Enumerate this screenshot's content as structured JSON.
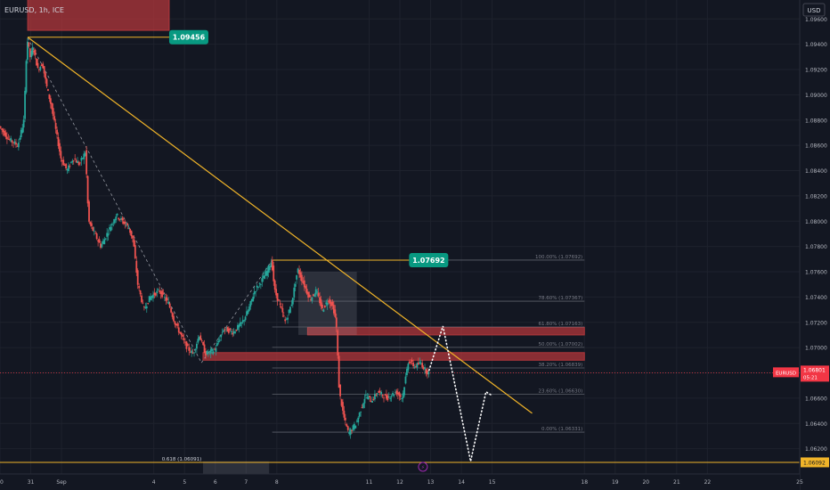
{
  "header": {
    "symbol_label": "EURUSD, 1h, ICE"
  },
  "currency_button": {
    "label": "USD"
  },
  "colors": {
    "background": "#131722",
    "grid": "#1e222d",
    "up": "#26a69a",
    "down": "#ef5350",
    "trendline": "#f0b429",
    "zone": "#b2373b",
    "label_green": "#089981",
    "price_tag_red": "#f23645",
    "box_gray": "#b2b5be"
  },
  "chart_data": {
    "type": "candlestick",
    "title": "",
    "symbol": "EURUSD",
    "timeframe": "1h",
    "exchange": "ICE",
    "y_axis": {
      "min": 1.06,
      "max": 1.0975,
      "ticks": [
        1.096,
        1.094,
        1.092,
        1.09,
        1.088,
        1.086,
        1.084,
        1.082,
        1.08,
        1.078,
        1.076,
        1.074,
        1.072,
        1.07,
        1.068,
        1.066,
        1.064,
        1.062,
        1.06
      ],
      "tick_labels": [
        "1.09600",
        "1.09400",
        "1.09200",
        "1.09000",
        "1.08800",
        "1.08600",
        "1.08400",
        "1.08200",
        "1.08000",
        "1.07800",
        "1.07600",
        "1.07400",
        "1.07200",
        "1.07000",
        "1.06800",
        "1.06600",
        "1.06400",
        "1.06200",
        "1.06000"
      ]
    },
    "x_axis": {
      "min": 30.0,
      "max": 56.0,
      "ticks": [
        30,
        31,
        32,
        35,
        36,
        37,
        38,
        39,
        42,
        43,
        44,
        45,
        46,
        49,
        50,
        51,
        52,
        53,
        56
      ],
      "tick_labels": [
        "30",
        "31",
        "Sep",
        "4",
        "5",
        "6",
        "7",
        "8",
        "11",
        "12",
        "13",
        "14",
        "15",
        "18",
        "19",
        "20",
        "21",
        "22",
        "25"
      ]
    },
    "price_path": [
      [
        30.0,
        1.0875
      ],
      [
        30.3,
        1.0865
      ],
      [
        30.6,
        1.086
      ],
      [
        30.8,
        1.088
      ],
      [
        30.9,
        1.0945
      ],
      [
        31.0,
        1.093
      ],
      [
        31.1,
        1.0938
      ],
      [
        31.25,
        1.092
      ],
      [
        31.4,
        1.0925
      ],
      [
        31.55,
        1.0905
      ],
      [
        31.7,
        1.089
      ],
      [
        31.85,
        1.087
      ],
      [
        32.0,
        1.085
      ],
      [
        32.2,
        1.084
      ],
      [
        32.4,
        1.085
      ],
      [
        32.6,
        1.0845
      ],
      [
        32.8,
        1.0855
      ],
      [
        32.9,
        1.08
      ],
      [
        33.1,
        1.079
      ],
      [
        33.3,
        1.078
      ],
      [
        33.5,
        1.079
      ],
      [
        33.8,
        1.0805
      ],
      [
        34.0,
        1.08
      ],
      [
        34.2,
        1.0795
      ],
      [
        34.35,
        1.0785
      ],
      [
        34.5,
        1.075
      ],
      [
        34.7,
        1.073
      ],
      [
        34.9,
        1.074
      ],
      [
        35.2,
        1.0745
      ],
      [
        35.5,
        1.0735
      ],
      [
        35.7,
        1.072
      ],
      [
        35.9,
        1.071
      ],
      [
        36.1,
        1.07
      ],
      [
        36.3,
        1.0695
      ],
      [
        36.5,
        1.071
      ],
      [
        36.7,
        1.0695
      ],
      [
        37.0,
        1.0698
      ],
      [
        37.3,
        1.0715
      ],
      [
        37.6,
        1.0712
      ],
      [
        37.9,
        1.072
      ],
      [
        38.1,
        1.073
      ],
      [
        38.3,
        1.0745
      ],
      [
        38.5,
        1.0752
      ],
      [
        38.7,
        1.076
      ],
      [
        38.85,
        1.0769
      ],
      [
        38.95,
        1.0745
      ],
      [
        39.1,
        1.0735
      ],
      [
        39.3,
        1.072
      ],
      [
        39.5,
        1.0735
      ],
      [
        39.7,
        1.0762
      ],
      [
        39.9,
        1.075
      ],
      [
        40.1,
        1.0738
      ],
      [
        40.3,
        1.0745
      ],
      [
        40.5,
        1.073
      ],
      [
        40.7,
        1.0738
      ],
      [
        40.85,
        1.0732
      ],
      [
        40.95,
        1.072
      ],
      [
        41.05,
        1.0665
      ],
      [
        41.2,
        1.0645
      ],
      [
        41.35,
        1.0632
      ],
      [
        41.6,
        1.064
      ],
      [
        41.9,
        1.0662
      ],
      [
        42.1,
        1.0658
      ],
      [
        42.3,
        1.0665
      ],
      [
        42.6,
        1.066
      ],
      [
        42.9,
        1.0665
      ],
      [
        43.1,
        1.066
      ],
      [
        43.3,
        1.069
      ],
      [
        43.5,
        1.0685
      ],
      [
        43.7,
        1.0688
      ],
      [
        43.85,
        1.0682
      ],
      [
        43.95,
        1.068
      ]
    ],
    "projection_path": [
      [
        43.95,
        1.0682
      ],
      [
        44.4,
        1.0717
      ],
      [
        45.3,
        1.061
      ],
      [
        45.8,
        1.0665
      ],
      [
        46.0,
        1.0662
      ]
    ],
    "price_labels": [
      {
        "label": "1.09456",
        "value": 1.09456
      },
      {
        "label": "1.07692",
        "value": 1.07692
      }
    ],
    "current_price": {
      "label": "EURUSD",
      "price_text": "1.06801",
      "countdown": "05:21",
      "value": 1.06801
    },
    "level_tag": {
      "label": "1.06092",
      "value": 1.06092
    },
    "fib_line_label": {
      "label": "0.618 (1.06091)",
      "value": 1.06091
    },
    "fib_levels": [
      {
        "label": "100.00% (1.07692)",
        "value": 1.07692
      },
      {
        "label": "78.60% (1.07367)",
        "value": 1.07367
      },
      {
        "label": "61.80% (1.07163)",
        "value": 1.07163
      },
      {
        "label": "50.00% (1.07002)",
        "value": 1.07002
      },
      {
        "label": "38.20% (1.06839)",
        "value": 1.06839
      },
      {
        "label": "23.60% (1.06630)",
        "value": 1.0663
      },
      {
        "label": "0.00% (1.06331)",
        "value": 1.06331
      }
    ],
    "trendline": [
      [
        30.9,
        1.09456
      ],
      [
        47.3,
        1.0648
      ]
    ],
    "zones": [
      {
        "x": [
          30.9,
          35.5
        ],
        "y": [
          1.0951,
          1.0976
        ]
      },
      {
        "x": [
          36.6,
          49.0
        ],
        "y": [
          1.069,
          1.0696
        ]
      },
      {
        "x": [
          40.0,
          49.0
        ],
        "y": [
          1.071,
          1.0716
        ]
      }
    ],
    "gray_boxes": [
      {
        "x": [
          39.7,
          41.6
        ],
        "y": [
          1.071,
          1.076
        ]
      },
      {
        "x": [
          36.6,
          38.75
        ],
        "y": [
          1.06,
          1.061
        ]
      }
    ],
    "events": [
      {
        "icon": "lightning-icon",
        "x": 43.75
      }
    ]
  }
}
